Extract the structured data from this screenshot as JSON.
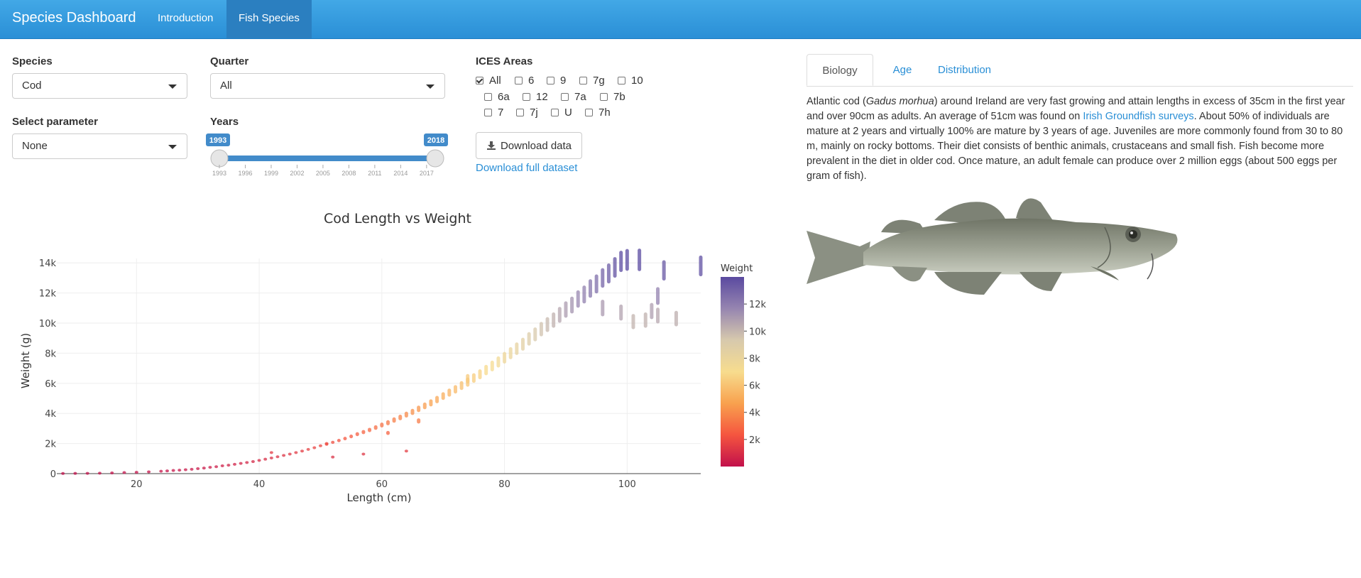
{
  "app": {
    "title": "Species Dashboard",
    "nav": [
      {
        "label": "Introduction"
      },
      {
        "label": "Fish Species"
      }
    ]
  },
  "controls": {
    "species": {
      "label": "Species",
      "value": "Cod"
    },
    "quarter": {
      "label": "Quarter",
      "value": "All"
    },
    "parameter": {
      "label": "Select parameter",
      "value": "None"
    },
    "years": {
      "label": "Years",
      "min": 1993,
      "max": 2018,
      "from_label": "1993",
      "to_label": "2018",
      "ticks": [
        "1993",
        "1996",
        "1999",
        "2002",
        "2005",
        "2008",
        "2011",
        "2014",
        "2017"
      ]
    },
    "ices": {
      "label": "ICES Areas",
      "options": [
        {
          "label": "All",
          "checked": true
        },
        {
          "label": "6"
        },
        {
          "label": "9"
        },
        {
          "label": "7g"
        },
        {
          "label": "10"
        },
        {
          "label": "6a"
        },
        {
          "label": "12"
        },
        {
          "label": "7a"
        },
        {
          "label": "7b"
        },
        {
          "label": "7"
        },
        {
          "label": "7j"
        },
        {
          "label": "U"
        },
        {
          "label": "7h"
        }
      ]
    },
    "download_button": "Download data",
    "download_full": "Download full dataset"
  },
  "tabs": [
    {
      "label": "Biology"
    },
    {
      "label": "Age"
    },
    {
      "label": "Distribution"
    }
  ],
  "biology": {
    "t1": "Atlantic cod (",
    "species_latin": "Gadus morhua",
    "t2": ") around Ireland are very fast growing and attain lengths in excess of 35cm in the first year and over 90cm as adults. An average of 51cm was found on ",
    "link": "Irish Groundfish surveys",
    "t3": ". About 50% of individuals are mature at 2 years and virtually 100% are mature by 3 years of age. Juveniles are more commonly found from 30 to 80 m, mainly on rocky bottoms. Their diet consists of benthic animals, crustaceans and small fish. Fish become more prevalent in the diet in older cod. Once mature, an adult female can produce over 2 million eggs (about 500 eggs per gram of fish)."
  },
  "chart_data": {
    "type": "scatter",
    "title": "Cod Length vs Weight",
    "xlabel": "Length (cm)",
    "ylabel": "Weight (g)",
    "xlim": [
      7,
      112
    ],
    "ylim": [
      0,
      14200
    ],
    "xticks": [
      20,
      40,
      60,
      80,
      100
    ],
    "yticks": [
      0,
      2000,
      4000,
      6000,
      8000,
      10000,
      12000,
      14000
    ],
    "ytick_labels": [
      "0",
      "2k",
      "4k",
      "6k",
      "8k",
      "10k",
      "12k",
      "14k"
    ],
    "grid": true,
    "colorscale": {
      "title": "Weight",
      "ticks": [
        "2k",
        "4k",
        "6k",
        "8k",
        "10k",
        "12k"
      ],
      "colors": [
        "#c2104b",
        "#f5553f",
        "#f8a14e",
        "#f7dc8e",
        "#d7c9ad",
        "#9685b0",
        "#5a4aa0"
      ],
      "range": [
        0,
        14000
      ]
    },
    "points": [
      [
        8,
        10
      ],
      [
        10,
        15
      ],
      [
        12,
        20
      ],
      [
        14,
        30
      ],
      [
        16,
        45
      ],
      [
        18,
        70
      ],
      [
        20,
        90
      ],
      [
        22,
        120
      ],
      [
        24,
        160
      ],
      [
        25,
        180
      ],
      [
        26,
        210
      ],
      [
        27,
        230
      ],
      [
        28,
        260
      ],
      [
        29,
        290
      ],
      [
        30,
        330
      ],
      [
        31,
        370
      ],
      [
        32,
        420
      ],
      [
        33,
        460
      ],
      [
        34,
        520
      ],
      [
        35,
        560
      ],
      [
        36,
        620
      ],
      [
        37,
        680
      ],
      [
        38,
        740
      ],
      [
        39,
        800
      ],
      [
        40,
        880
      ],
      [
        41,
        960
      ],
      [
        42,
        1040
      ],
      [
        43,
        1120
      ],
      [
        44,
        1210
      ],
      [
        45,
        1300
      ],
      [
        46,
        1400
      ],
      [
        47,
        1500
      ],
      [
        48,
        1610
      ],
      [
        49,
        1720
      ],
      [
        50,
        1850
      ],
      [
        51,
        1950
      ],
      [
        52,
        2080
      ],
      [
        53,
        2200
      ],
      [
        54,
        2330
      ],
      [
        55,
        2470
      ],
      [
        56,
        2620
      ],
      [
        57,
        2760
      ],
      [
        58,
        2900
      ],
      [
        59,
        3060
      ],
      [
        60,
        3230
      ],
      [
        61,
        3380
      ],
      [
        62,
        3560
      ],
      [
        63,
        3730
      ],
      [
        64,
        3920
      ],
      [
        65,
        4100
      ],
      [
        66,
        4300
      ],
      [
        67,
        4500
      ],
      [
        68,
        4700
      ],
      [
        69,
        4920
      ],
      [
        70,
        5150
      ],
      [
        71,
        5380
      ],
      [
        72,
        5600
      ],
      [
        73,
        5850
      ],
      [
        74,
        6080
      ],
      [
        75,
        6350
      ],
      [
        76,
        6600
      ],
      [
        77,
        6880
      ],
      [
        78,
        7150
      ],
      [
        79,
        7420
      ],
      [
        80,
        7700
      ],
      [
        81,
        8000
      ],
      [
        82,
        8300
      ],
      [
        83,
        8600
      ],
      [
        84,
        8950
      ],
      [
        85,
        9250
      ],
      [
        86,
        9600
      ],
      [
        87,
        9900
      ],
      [
        88,
        10200
      ],
      [
        89,
        10550
      ],
      [
        90,
        10900
      ],
      [
        91,
        11200
      ],
      [
        92,
        11600
      ],
      [
        93,
        11900
      ],
      [
        94,
        12300
      ],
      [
        95,
        12600
      ],
      [
        96,
        13000
      ],
      [
        97,
        13300
      ],
      [
        98,
        13700
      ],
      [
        99,
        14100
      ],
      [
        100,
        14500
      ],
      [
        102,
        15000
      ],
      [
        42,
        1400
      ],
      [
        51,
        2000
      ],
      [
        52,
        1100
      ],
      [
        57,
        1300
      ],
      [
        61,
        2700
      ],
      [
        64,
        1500
      ],
      [
        66,
        3500
      ],
      [
        74,
        6300
      ],
      [
        96,
        11000
      ],
      [
        99,
        10700
      ],
      [
        101,
        10100
      ],
      [
        103,
        10200
      ],
      [
        104,
        10800
      ],
      [
        105,
        11800
      ],
      [
        105,
        10500
      ],
      [
        106,
        13500
      ],
      [
        108,
        10300
      ],
      [
        112,
        13800
      ]
    ]
  }
}
